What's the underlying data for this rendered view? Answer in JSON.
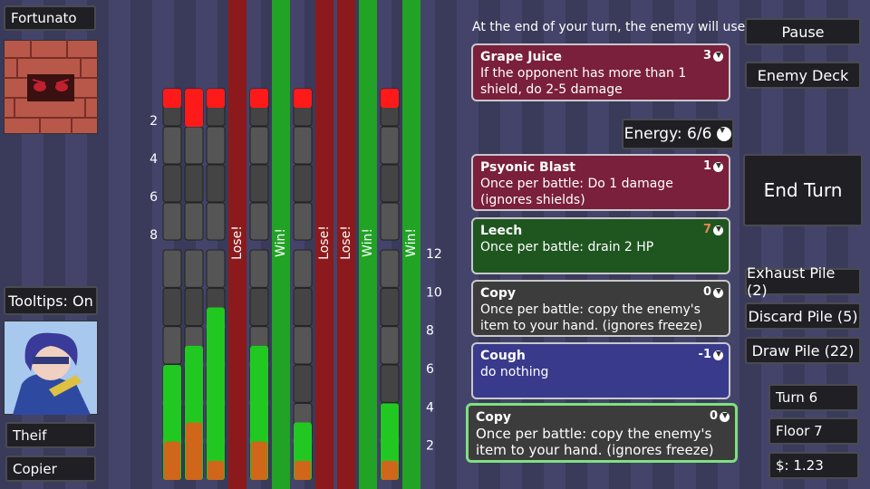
{
  "enemy": {
    "name": "Fortunato"
  },
  "player": {
    "tooltips": "Tooltips: On",
    "class": "Theif",
    "ability": "Copier"
  },
  "gauge": {
    "enemy_scale": [
      2,
      4,
      6,
      8
    ],
    "player_scale": [
      12,
      10,
      8,
      6,
      4,
      2
    ],
    "columns": [
      {
        "enemy": 1,
        "player": 6,
        "bonus": 2
      },
      {
        "enemy": 2,
        "player": 7,
        "bonus": 3
      },
      {
        "enemy": 1,
        "player": 9,
        "bonus": 1
      },
      {
        "result": "Lose!"
      },
      {
        "enemy": 1,
        "player": 7,
        "bonus": 2
      },
      {
        "result": "Win!"
      },
      {
        "enemy": 1,
        "player": 3,
        "bonus": 1
      },
      {
        "result": "Lose!"
      },
      {
        "result": "Lose!"
      },
      {
        "result": "Win!"
      },
      {
        "enemy": 1,
        "player": 4,
        "bonus": 1
      },
      {
        "result": "Win!"
      }
    ]
  },
  "intent": {
    "heading": "At the end of your turn, the enemy will use:",
    "card": {
      "name": "Grape Juice",
      "cost": 3,
      "text": "If the opponent has more than 1 shield, do 2-5 damage",
      "color": "#7a1f3c"
    }
  },
  "energy": "Energy: 6/6",
  "hand": [
    {
      "name": "Psyonic Blast",
      "cost": 1,
      "text": "Once per battle: Do 1 damage (ignores shields)",
      "color": "#7a1f3c"
    },
    {
      "name": "Leech",
      "cost": 7,
      "text": "Once per battle: drain 2 HP",
      "color": "#1f5620"
    },
    {
      "name": "Copy",
      "cost": 0,
      "text": "Once per battle: copy the enemy's item to your hand. (ignores freeze)",
      "color": "#3c3c3c"
    },
    {
      "name": "Cough",
      "cost": -1,
      "text": "do nothing",
      "color": "#393a8c"
    },
    {
      "name": "Copy",
      "cost": 0,
      "text": "Once per battle: copy the enemy's item to your hand. (ignores freeze)",
      "color": "#3c3c3c"
    }
  ],
  "buttons": {
    "pause": "Pause",
    "enemy_deck": "Enemy Deck",
    "end_turn": "End Turn",
    "exhaust": "Exhaust Pile (2)",
    "discard": "Discard Pile (5)",
    "draw": "Draw Pile (22)"
  },
  "status": {
    "turn": "Turn 6",
    "floor": "Floor 7",
    "money": "$: 1.23"
  }
}
